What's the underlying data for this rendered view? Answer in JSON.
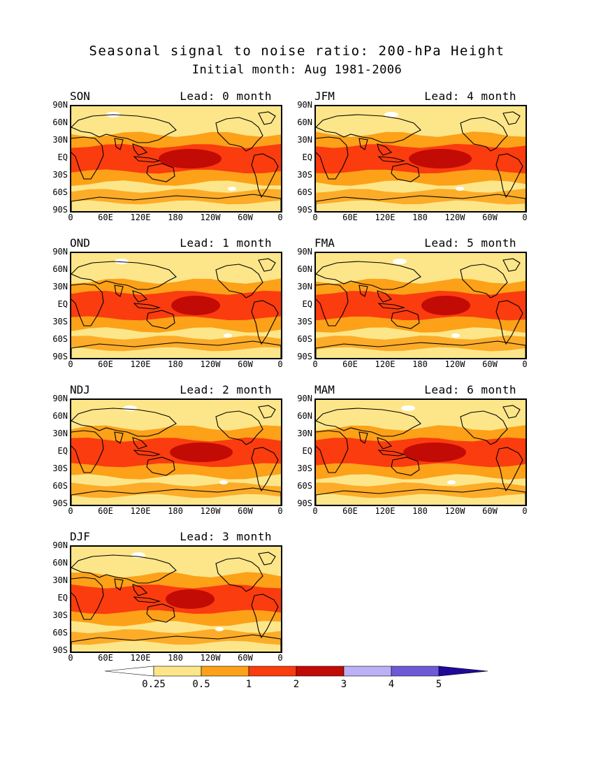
{
  "title": "Seasonal signal to noise ratio: 200-hPa Height",
  "subtitle": "Initial month: Aug 1981-2006",
  "lat_labels": [
    "90N",
    "60N",
    "30N",
    "EQ",
    "30S",
    "60S",
    "90S"
  ],
  "lon_labels": [
    "0",
    "60E",
    "120E",
    "180",
    "120W",
    "60W",
    "0"
  ],
  "panels": [
    {
      "season": "SON",
      "lead": "Lead: 0 month",
      "tropical_max": "2-3"
    },
    {
      "season": "OND",
      "lead": "Lead: 1 month",
      "tropical_max": "2-3"
    },
    {
      "season": "NDJ",
      "lead": "Lead: 2 month",
      "tropical_max": "2-3"
    },
    {
      "season": "DJF",
      "lead": "Lead: 3 month",
      "tropical_max": "2-3"
    },
    {
      "season": "JFM",
      "lead": "Lead: 4 month",
      "tropical_max": "2-3"
    },
    {
      "season": "FMA",
      "lead": "Lead: 5 month",
      "tropical_max": "2-3"
    },
    {
      "season": "MAM",
      "lead": "Lead: 6 month",
      "tropical_max": "2-3"
    }
  ],
  "colorbar": {
    "labels": [
      "0.25",
      "0.5",
      "1",
      "2",
      "3",
      "4",
      "5"
    ],
    "colors": [
      "#ffffff",
      "#fde689",
      "#fca118",
      "#fa3c0f",
      "#c20b05",
      "#bcb0f7",
      "#6e5ad6",
      "#22089a"
    ]
  }
}
